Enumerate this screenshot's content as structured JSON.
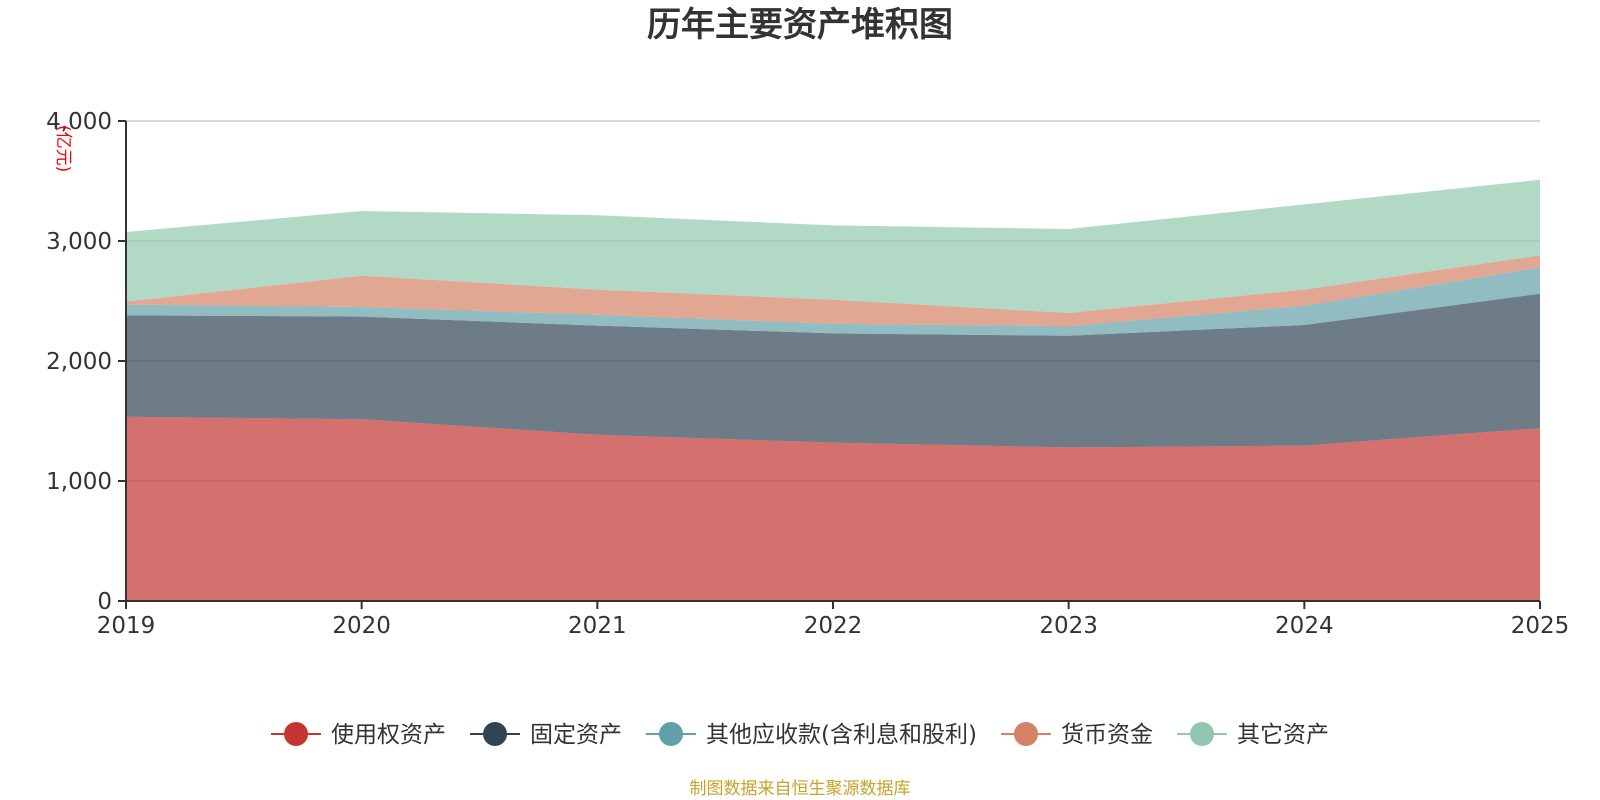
{
  "chart_data": {
    "type": "area",
    "stacked": true,
    "title": "历年主要资产堆积图",
    "unit": "(亿元)",
    "x": [
      "2019",
      "2020",
      "2021",
      "2022",
      "2023",
      "2024",
      "2025"
    ],
    "ylim": [
      0,
      4000
    ],
    "yticks": [
      0,
      1000,
      2000,
      3000,
      4000
    ],
    "ytick_labels": [
      "0",
      "1,000",
      "2,000",
      "3,000",
      "4,000"
    ],
    "grid": true,
    "legend_position": "bottom",
    "series": [
      {
        "name": "使用权资产",
        "color": "#c23531",
        "values": [
          1535,
          1515,
          1385,
          1320,
          1280,
          1295,
          1440
        ]
      },
      {
        "name": "固定资产",
        "color": "#2f4554",
        "values": [
          845,
          855,
          910,
          910,
          930,
          1005,
          1120
        ]
      },
      {
        "name": "其他应收款(含利息和股利)",
        "color": "#61a0a8",
        "values": [
          90,
          80,
          90,
          80,
          80,
          160,
          220
        ]
      },
      {
        "name": "货币资金",
        "color": "#d48265",
        "values": [
          25,
          260,
          210,
          200,
          110,
          135,
          100
        ]
      },
      {
        "name": "其它资产",
        "color": "#91c7ae",
        "values": [
          580,
          540,
          620,
          620,
          700,
          710,
          630
        ]
      }
    ]
  },
  "source_note": "制图数据来自恒生聚源数据库",
  "colors": {
    "unit": "#ff0000",
    "source": "#c9a227",
    "axis": "#333333",
    "grid": "#cccccc"
  }
}
